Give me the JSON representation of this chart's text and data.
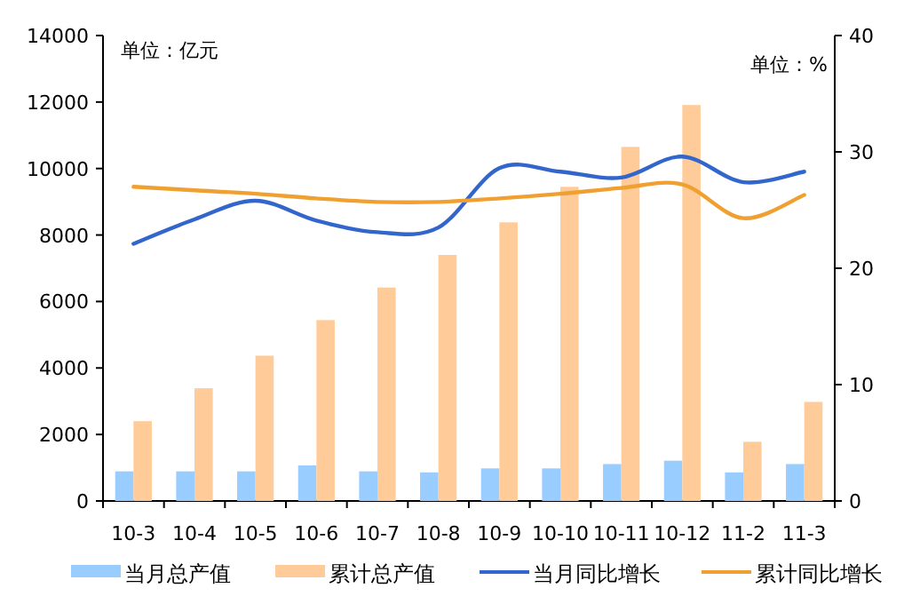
{
  "chart_data": {
    "type": "bar",
    "categories": [
      "10-3",
      "10-4",
      "10-5",
      "10-6",
      "10-7",
      "10-8",
      "10-9",
      "10-10",
      "10-11",
      "10-12",
      "11-2",
      "11-3"
    ],
    "series": [
      {
        "name": "当月总产值",
        "color": "#99ccff",
        "values": [
          890,
          890,
          890,
          1070,
          890,
          860,
          980,
          980,
          1110,
          1210,
          860,
          1110
        ]
      },
      {
        "name": "累计总产值",
        "color": "#ffcc99",
        "values": [
          2400,
          3390,
          4370,
          5440,
          6420,
          7400,
          8380,
          9450,
          10650,
          11910,
          1780,
          2980
        ]
      },
      {
        "name": "当月同比增长",
        "type": "line",
        "axis": "y2",
        "color": "#3366cc",
        "values": [
          22.1,
          24.2,
          25.8,
          24.1,
          23.1,
          23.5,
          28.6,
          28.3,
          27.8,
          29.6,
          27.4,
          28.3
        ]
      },
      {
        "name": "累计同比增长",
        "type": "line",
        "axis": "y2",
        "color": "#f0a030",
        "values": [
          27.0,
          26.7,
          26.4,
          26.0,
          25.7,
          25.7,
          26.0,
          26.4,
          26.9,
          27.2,
          24.3,
          26.3
        ]
      }
    ],
    "ylim": [
      0,
      14000
    ],
    "yticks": [
      0,
      2000,
      4000,
      6000,
      8000,
      10000,
      12000,
      14000
    ],
    "y2lim": [
      0,
      40
    ],
    "y2ticks": [
      0,
      10,
      20,
      30,
      40
    ],
    "annotations": [
      "单位：亿元",
      "单位：%"
    ],
    "legend": "bottom",
    "grid": false
  }
}
